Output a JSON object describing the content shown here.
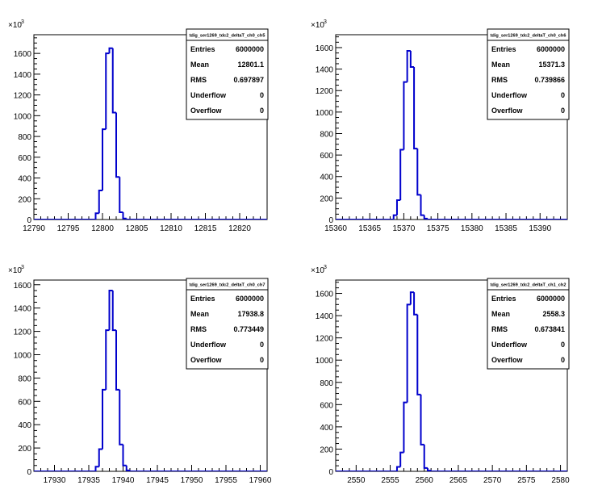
{
  "chart_data": [
    {
      "type": "bar",
      "title": "tdig_ser1269_tdc2_deltaT_ch0_ch5",
      "y_multiplier_label": "×10",
      "y_multiplier_exp": "3",
      "xlim": [
        12790,
        12824
      ],
      "ylim": [
        0,
        1780
      ],
      "xticks": [
        12790,
        12795,
        12800,
        12805,
        12810,
        12815,
        12820
      ],
      "yticks": [
        0,
        200,
        400,
        600,
        800,
        1000,
        1200,
        1400,
        1600
      ],
      "bins": [
        {
          "x0": 12799.0,
          "x1": 12799.5,
          "y": 60
        },
        {
          "x0": 12799.5,
          "x1": 12800.0,
          "y": 280
        },
        {
          "x0": 12800.0,
          "x1": 12800.5,
          "y": 870
        },
        {
          "x0": 12800.5,
          "x1": 12801.0,
          "y": 1600
        },
        {
          "x0": 12801.0,
          "x1": 12801.5,
          "y": 1650
        },
        {
          "x0": 12801.5,
          "x1": 12802.0,
          "y": 1030
        },
        {
          "x0": 12802.0,
          "x1": 12802.5,
          "y": 410
        },
        {
          "x0": 12802.5,
          "x1": 12803.0,
          "y": 70
        },
        {
          "x0": 12803.0,
          "x1": 12803.5,
          "y": 10
        }
      ],
      "stats": [
        {
          "label": "Entries",
          "value": "6000000"
        },
        {
          "label": "Mean",
          "value": "12801.1"
        },
        {
          "label": "RMS",
          "value": "0.697897"
        },
        {
          "label": "Underflow",
          "value": "0"
        },
        {
          "label": "Overflow",
          "value": "0"
        }
      ]
    },
    {
      "type": "bar",
      "title": "tdig_ser1269_tdc2_deltaT_ch0_ch6",
      "y_multiplier_label": "×10",
      "y_multiplier_exp": "3",
      "xlim": [
        15360,
        15394
      ],
      "ylim": [
        0,
        1720
      ],
      "xticks": [
        15360,
        15365,
        15370,
        15375,
        15380,
        15385,
        15390
      ],
      "yticks": [
        0,
        200,
        400,
        600,
        800,
        1000,
        1200,
        1400,
        1600
      ],
      "bins": [
        {
          "x0": 15368.5,
          "x1": 15369.0,
          "y": 40
        },
        {
          "x0": 15369.0,
          "x1": 15369.5,
          "y": 180
        },
        {
          "x0": 15369.5,
          "x1": 15370.0,
          "y": 650
        },
        {
          "x0": 15370.0,
          "x1": 15370.5,
          "y": 1280
        },
        {
          "x0": 15370.5,
          "x1": 15371.0,
          "y": 1570
        },
        {
          "x0": 15371.0,
          "x1": 15371.5,
          "y": 1420
        },
        {
          "x0": 15371.5,
          "x1": 15372.0,
          "y": 660
        },
        {
          "x0": 15372.0,
          "x1": 15372.5,
          "y": 230
        },
        {
          "x0": 15372.5,
          "x1": 15373.0,
          "y": 40
        },
        {
          "x0": 15373.0,
          "x1": 15373.5,
          "y": 8
        }
      ],
      "stats": [
        {
          "label": "Entries",
          "value": "6000000"
        },
        {
          "label": "Mean",
          "value": "15371.3"
        },
        {
          "label": "RMS",
          "value": "0.739866"
        },
        {
          "label": "Underflow",
          "value": "0"
        },
        {
          "label": "Overflow",
          "value": "0"
        }
      ]
    },
    {
      "type": "bar",
      "title": "tdig_ser1269_tdc2_deltaT_ch0_ch7",
      "y_multiplier_label": "×10",
      "y_multiplier_exp": "3",
      "xlim": [
        17927,
        17961
      ],
      "ylim": [
        0,
        1640
      ],
      "xticks": [
        17930,
        17935,
        17940,
        17945,
        17950,
        17955,
        17960
      ],
      "yticks": [
        0,
        200,
        400,
        600,
        800,
        1000,
        1200,
        1400,
        1600
      ],
      "bins": [
        {
          "x0": 17936.0,
          "x1": 17936.5,
          "y": 40
        },
        {
          "x0": 17936.5,
          "x1": 17937.0,
          "y": 190
        },
        {
          "x0": 17937.0,
          "x1": 17937.5,
          "y": 700
        },
        {
          "x0": 17937.5,
          "x1": 17938.0,
          "y": 1210
        },
        {
          "x0": 17938.0,
          "x1": 17938.5,
          "y": 1550
        },
        {
          "x0": 17938.5,
          "x1": 17939.0,
          "y": 1210
        },
        {
          "x0": 17939.0,
          "x1": 17939.5,
          "y": 700
        },
        {
          "x0": 17939.5,
          "x1": 17940.0,
          "y": 230
        },
        {
          "x0": 17940.0,
          "x1": 17940.5,
          "y": 50
        },
        {
          "x0": 17940.5,
          "x1": 17941.0,
          "y": 8
        }
      ],
      "stats": [
        {
          "label": "Entries",
          "value": "6000000"
        },
        {
          "label": "Mean",
          "value": "17938.8"
        },
        {
          "label": "RMS",
          "value": "0.773449"
        },
        {
          "label": "Underflow",
          "value": "0"
        },
        {
          "label": "Overflow",
          "value": "0"
        }
      ]
    },
    {
      "type": "bar",
      "title": "tdig_ser1269_tdc2_deltaT_ch1_ch2",
      "y_multiplier_label": "×10",
      "y_multiplier_exp": "3",
      "xlim": [
        2547,
        2581
      ],
      "ylim": [
        0,
        1720
      ],
      "xticks": [
        2550,
        2555,
        2560,
        2565,
        2570,
        2575,
        2580
      ],
      "yticks": [
        0,
        200,
        400,
        600,
        800,
        1000,
        1200,
        1400,
        1600
      ],
      "bins": [
        {
          "x0": 2556.0,
          "x1": 2556.5,
          "y": 40
        },
        {
          "x0": 2556.5,
          "x1": 2557.0,
          "y": 170
        },
        {
          "x0": 2557.0,
          "x1": 2557.5,
          "y": 620
        },
        {
          "x0": 2557.5,
          "x1": 2558.0,
          "y": 1500
        },
        {
          "x0": 2558.0,
          "x1": 2558.5,
          "y": 1610
        },
        {
          "x0": 2558.5,
          "x1": 2559.0,
          "y": 1410
        },
        {
          "x0": 2559.0,
          "x1": 2559.5,
          "y": 690
        },
        {
          "x0": 2559.5,
          "x1": 2560.0,
          "y": 240
        },
        {
          "x0": 2560.0,
          "x1": 2560.5,
          "y": 30
        },
        {
          "x0": 2560.5,
          "x1": 2561.0,
          "y": 6
        }
      ],
      "stats": [
        {
          "label": "Entries",
          "value": "6000000"
        },
        {
          "label": "Mean",
          "value": "2558.3"
        },
        {
          "label": "RMS",
          "value": "0.673841"
        },
        {
          "label": "Underflow",
          "value": "0"
        },
        {
          "label": "Overflow",
          "value": "0"
        }
      ]
    }
  ],
  "colors": {
    "histogram_line": "#0000cc",
    "axis": "#000000",
    "frame": "#000000",
    "background": "#ffffff"
  }
}
